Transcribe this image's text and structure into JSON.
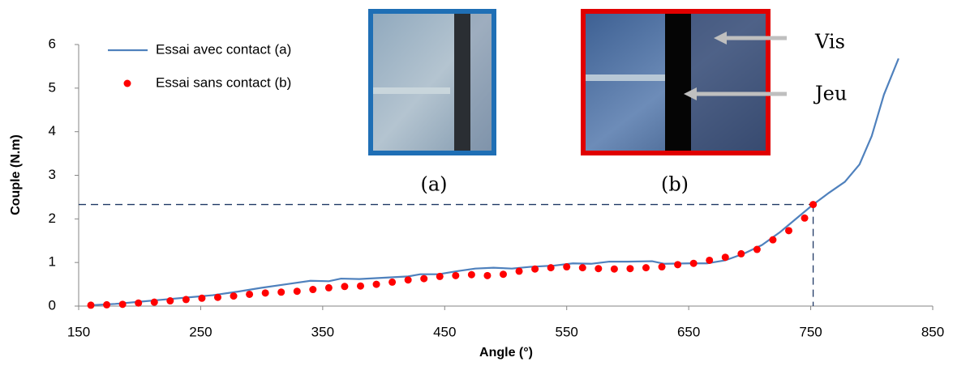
{
  "chart_data": {
    "type": "line",
    "x_label": "Angle (°)",
    "y_label": "Couple (N.m)",
    "xlim": [
      150,
      850
    ],
    "xticks": [
      150,
      250,
      350,
      450,
      550,
      650,
      750,
      850
    ],
    "ylim": [
      0,
      6
    ],
    "yticks": [
      0,
      1,
      2,
      3,
      4,
      5,
      6
    ],
    "series": [
      {
        "name": "Essai avec contact (a)",
        "color": "#4f81bd",
        "style": "line",
        "x": [
          160,
          180,
          200,
          220,
          240,
          260,
          280,
          300,
          320,
          340,
          355,
          365,
          380,
          400,
          420,
          430,
          445,
          460,
          475,
          490,
          505,
          520,
          540,
          555,
          570,
          585,
          600,
          620,
          630,
          650,
          665,
          680,
          695,
          710,
          725,
          740,
          752,
          765,
          778,
          790,
          800,
          810,
          822
        ],
        "values": [
          0.02,
          0.05,
          0.1,
          0.15,
          0.2,
          0.25,
          0.33,
          0.42,
          0.5,
          0.58,
          0.57,
          0.63,
          0.62,
          0.65,
          0.68,
          0.73,
          0.73,
          0.8,
          0.86,
          0.88,
          0.86,
          0.9,
          0.93,
          0.98,
          0.97,
          1.02,
          1.02,
          1.03,
          0.97,
          0.98,
          0.98,
          1.05,
          1.2,
          1.4,
          1.7,
          2.05,
          2.33,
          2.6,
          2.85,
          3.25,
          3.9,
          4.85,
          5.68
        ]
      },
      {
        "name": "Essai sans contact (b)",
        "color": "#ff0000",
        "style": "dots",
        "x": [
          160,
          173,
          186,
          199,
          212,
          225,
          238,
          251,
          264,
          277,
          290,
          303,
          316,
          329,
          342,
          355,
          368,
          381,
          394,
          407,
          420,
          433,
          446,
          459,
          472,
          485,
          498,
          511,
          524,
          537,
          550,
          563,
          576,
          589,
          602,
          615,
          628,
          641,
          654,
          667,
          680,
          693,
          706,
          719,
          732,
          745,
          752
        ],
        "values": [
          0.02,
          0.03,
          0.04,
          0.07,
          0.09,
          0.12,
          0.15,
          0.18,
          0.2,
          0.23,
          0.27,
          0.3,
          0.32,
          0.34,
          0.38,
          0.42,
          0.45,
          0.46,
          0.5,
          0.55,
          0.6,
          0.63,
          0.68,
          0.7,
          0.72,
          0.7,
          0.73,
          0.8,
          0.85,
          0.88,
          0.9,
          0.88,
          0.86,
          0.85,
          0.86,
          0.88,
          0.9,
          0.95,
          0.98,
          1.05,
          1.12,
          1.2,
          1.3,
          1.52,
          1.73,
          2.02,
          2.33
        ]
      }
    ],
    "reference": {
      "x": 752,
      "y": 2.33
    },
    "annotations": [
      "(a)",
      "(b)",
      "Vis",
      "Jeu"
    ]
  }
}
